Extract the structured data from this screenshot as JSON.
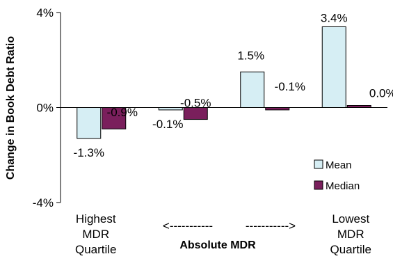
{
  "chart_data": {
    "type": "bar",
    "ylabel": "Change in Book Debt Ratio",
    "xlabel": "Absolute MDR",
    "x_arrow_left": "<-----------",
    "x_arrow_right": "----------->",
    "ylim": [
      -4,
      4
    ],
    "yticks": [
      "4%",
      "0%",
      "-4%"
    ],
    "ytick_values": [
      4,
      0,
      -4
    ],
    "grid": false,
    "legend_position": "bottom-right",
    "categories": [
      [
        "Highest",
        "MDR",
        "Quartile"
      ],
      [],
      [],
      [
        "Lowest",
        "MDR",
        "Quartile"
      ]
    ],
    "series": [
      {
        "name": "Mean",
        "color": "#d6eef4",
        "values": [
          -1.3,
          -0.1,
          1.5,
          3.4
        ],
        "labels": [
          "-1.3%",
          "-0.1%",
          "1.5%",
          "3.4%"
        ]
      },
      {
        "name": "Median",
        "color": "#7a1f5c",
        "values": [
          -0.9,
          -0.5,
          -0.1,
          0.0
        ],
        "labels": [
          "-0.9%",
          "-0.5%",
          "-0.1%",
          "0.0%"
        ]
      }
    ]
  }
}
